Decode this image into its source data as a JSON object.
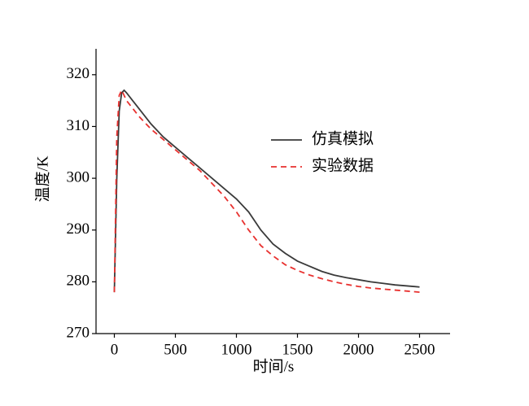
{
  "chart_data": {
    "type": "line",
    "x_label": "时间/s",
    "y_label": "温度/K",
    "x": [
      0,
      20,
      40,
      60,
      80,
      100,
      150,
      200,
      300,
      400,
      500,
      600,
      700,
      800,
      900,
      1000,
      1100,
      1200,
      1300,
      1400,
      1500,
      1600,
      1700,
      1800,
      1900,
      2000,
      2100,
      2200,
      2300,
      2400,
      2500
    ],
    "series": [
      {
        "name": "仿真模拟",
        "color": "#3a3a3a",
        "line_style": "solid",
        "values": [
          278,
          300,
          313,
          316.5,
          317,
          316.5,
          315,
          313.5,
          310.5,
          308,
          306,
          304,
          302,
          300,
          298,
          296,
          293.5,
          290,
          287.3,
          285.5,
          284,
          283,
          282,
          281.3,
          280.8,
          280.4,
          280,
          279.7,
          279.4,
          279.2,
          279
        ]
      },
      {
        "name": "实验数据",
        "color": "#e8312f",
        "line_style": "dashed",
        "values": [
          278,
          308,
          316,
          317,
          316,
          315,
          313.5,
          312,
          309.5,
          307.5,
          305.5,
          303.5,
          301.5,
          299,
          296.5,
          293.5,
          290,
          287,
          285,
          283.3,
          282.2,
          281.3,
          280.6,
          280,
          279.5,
          279.1,
          278.8,
          278.6,
          278.4,
          278.2,
          278
        ]
      }
    ],
    "xlim": [
      -150,
      2750
    ],
    "xticks": [
      0,
      500,
      1000,
      1500,
      2000,
      2500
    ],
    "ylim": [
      270,
      325
    ],
    "yticks": [
      270,
      280,
      290,
      300,
      310,
      320
    ],
    "grid": false,
    "legend": "upper right"
  }
}
